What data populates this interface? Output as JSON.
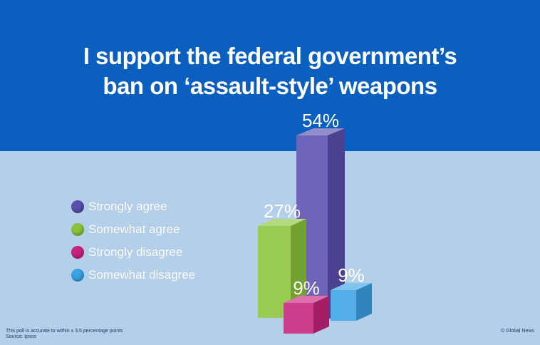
{
  "title_lines": [
    "I support the federal government’s",
    "ban on ‘assault-style’ weapons"
  ],
  "legend": [
    {
      "label": "Strongly agree",
      "color": "#5a4fb0"
    },
    {
      "label": "Somewhat agree",
      "color": "#8bc43a"
    },
    {
      "label": "Strongly disagree",
      "color": "#c8237e"
    },
    {
      "label": "Somewhat disagree",
      "color": "#3aa2e6"
    }
  ],
  "footnote_lines": [
    "This poll is accurate to within ± 3.5 percentage points",
    "Source: Ipsos"
  ],
  "credit": "© Global News",
  "chart_data": {
    "type": "bar",
    "categories": [
      "Strongly agree",
      "Somewhat agree",
      "Strongly disagree",
      "Somewhat disagree"
    ],
    "values": [
      54,
      27,
      9,
      9
    ],
    "value_labels": [
      "54%",
      "27%",
      "9%",
      "9%"
    ],
    "colors": [
      "#5a4fb0",
      "#8bc43a",
      "#c8237e",
      "#3aa2e6"
    ],
    "title": "I support the federal government’s ban on ‘assault-style’ weapons",
    "xlabel": "",
    "ylabel": "",
    "ylim": [
      0,
      54
    ],
    "grid": false,
    "legend_position": "left"
  }
}
